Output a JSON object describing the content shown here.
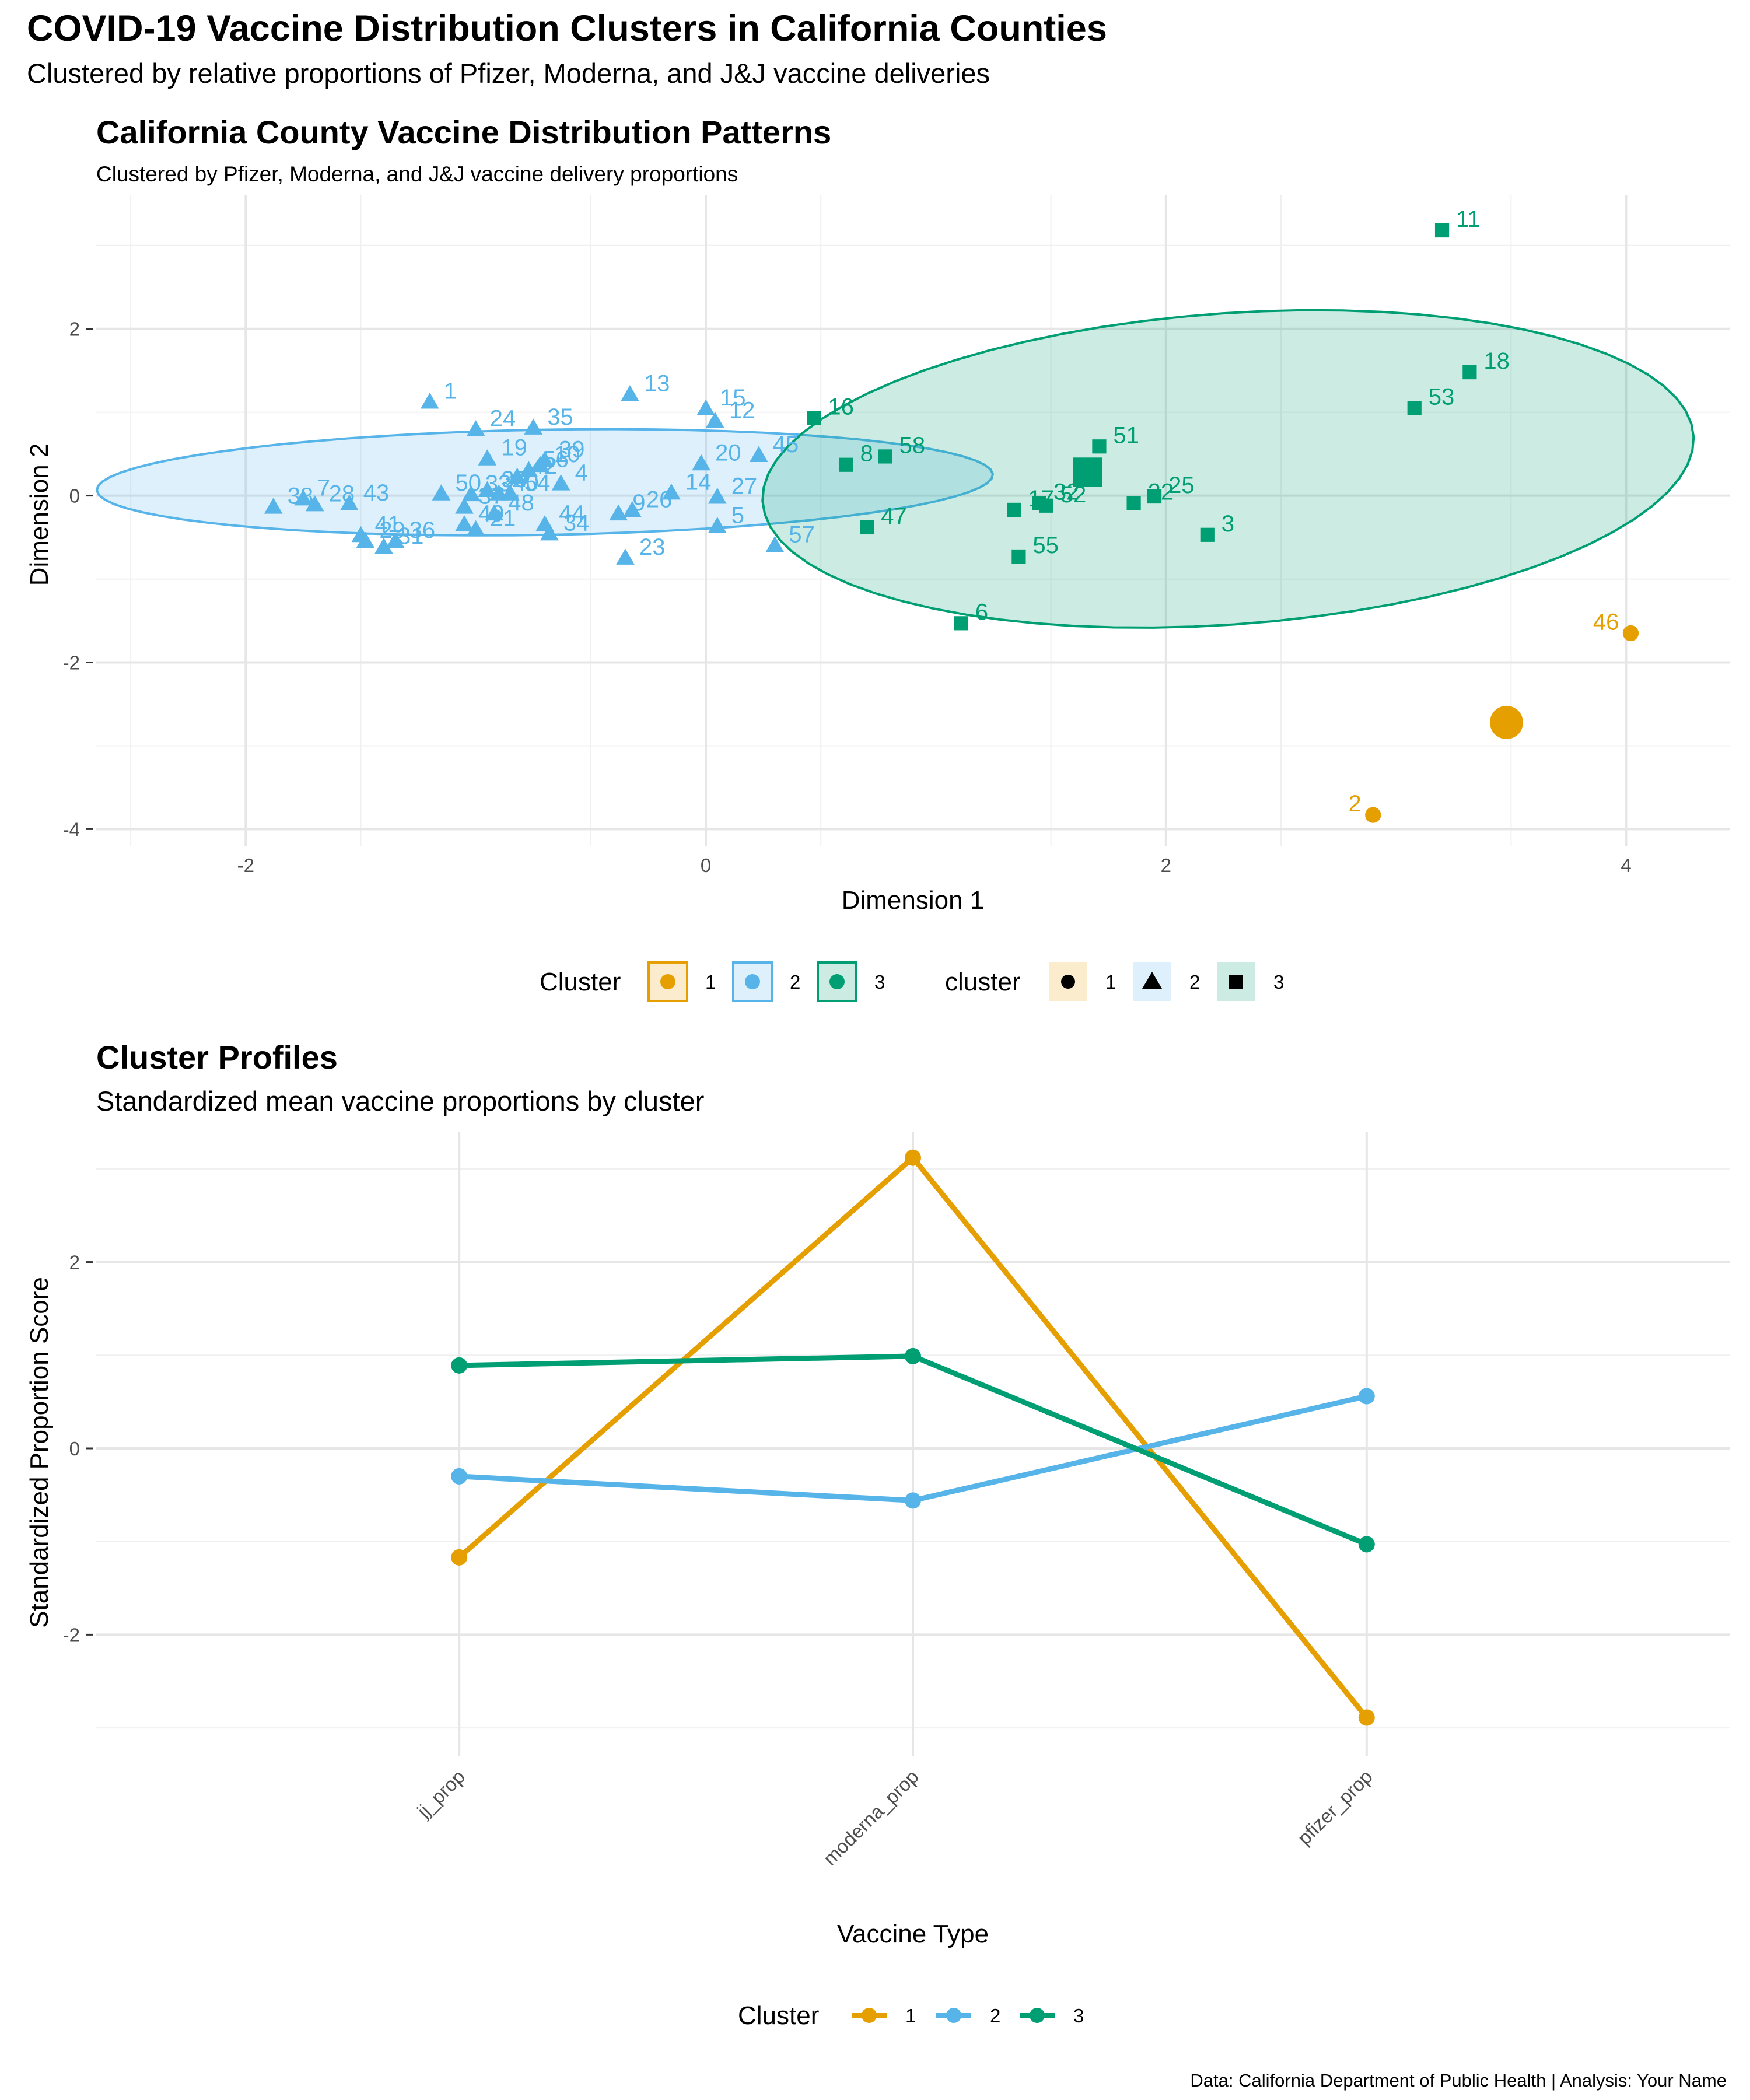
{
  "figure": {
    "title": "COVID-19 Vaccine Distribution Clusters in California Counties",
    "subtitle": "Clustered by relative proportions of Pfizer, Moderna, and J&J vaccine deliveries",
    "caption": "Data: California Department of Public Health | Analysis: Your Name"
  },
  "colors": {
    "1": "#E69F00",
    "2": "#56B4E9",
    "3": "#009E73"
  },
  "chart_data": [
    {
      "type": "scatter",
      "title": "California County Vaccine Distribution Patterns",
      "subtitle": "Clustered by Pfizer, Moderna, and J&J vaccine delivery proportions",
      "xlabel": "Dimension 1",
      "ylabel": "Dimension 2",
      "xlim": [
        -2.65,
        4.45
      ],
      "ylim": [
        -4.2,
        3.6
      ],
      "xticks": [
        -2,
        0,
        2,
        4
      ],
      "yticks": [
        -4,
        -2,
        0,
        2
      ],
      "grid": true,
      "legend": {
        "placement": "bottom",
        "fill_title": "Cluster",
        "shape_title": "cluster",
        "entries": [
          "1",
          "2",
          "3"
        ],
        "shapes": [
          "circle",
          "triangle",
          "square"
        ]
      },
      "points": [
        {
          "label": "2",
          "x": 2.9,
          "y": -3.83,
          "cluster": 1
        },
        {
          "label": "46",
          "x": 4.02,
          "y": -1.65,
          "cluster": 1
        },
        {
          "label": "1",
          "x": -1.2,
          "y": 1.12,
          "cluster": 2
        },
        {
          "label": "24",
          "x": -1.0,
          "y": 0.79,
          "cluster": 2
        },
        {
          "label": "13",
          "x": -0.33,
          "y": 1.21,
          "cluster": 2
        },
        {
          "label": "35",
          "x": -0.75,
          "y": 0.81,
          "cluster": 2
        },
        {
          "label": "39",
          "x": -0.7,
          "y": 0.42,
          "cluster": 2
        },
        {
          "label": "15",
          "x": 0.0,
          "y": 1.04,
          "cluster": 2
        },
        {
          "label": "19",
          "x": -0.95,
          "y": 0.44,
          "cluster": 2
        },
        {
          "label": "42",
          "x": -0.82,
          "y": 0.22,
          "cluster": 2
        },
        {
          "label": "56",
          "x": -0.77,
          "y": 0.3,
          "cluster": 2
        },
        {
          "label": "10",
          "x": -0.72,
          "y": 0.36,
          "cluster": 2
        },
        {
          "label": "4",
          "x": -0.63,
          "y": 0.14,
          "cluster": 2
        },
        {
          "label": "12",
          "x": 0.04,
          "y": 0.89,
          "cluster": 2
        },
        {
          "label": "20",
          "x": -0.02,
          "y": 0.38,
          "cluster": 2
        },
        {
          "label": "45",
          "x": 0.23,
          "y": 0.48,
          "cluster": 2
        },
        {
          "label": "38",
          "x": -1.88,
          "y": -0.14,
          "cluster": 2
        },
        {
          "label": "7",
          "x": -1.75,
          "y": -0.04,
          "cluster": 2
        },
        {
          "label": "28",
          "x": -1.7,
          "y": -0.11,
          "cluster": 2
        },
        {
          "label": "43",
          "x": -1.55,
          "y": -0.1,
          "cluster": 2
        },
        {
          "label": "50",
          "x": -1.15,
          "y": 0.02,
          "cluster": 2
        },
        {
          "label": "33",
          "x": -1.02,
          "y": 0.01,
          "cluster": 2
        },
        {
          "label": "30",
          "x": -0.95,
          "y": 0.06,
          "cluster": 2
        },
        {
          "label": "40",
          "x": -0.9,
          "y": 0.02,
          "cluster": 2
        },
        {
          "label": "54",
          "x": -0.85,
          "y": 0.02,
          "cluster": 2
        },
        {
          "label": "37",
          "x": -1.05,
          "y": -0.14,
          "cluster": 2
        },
        {
          "label": "48",
          "x": -0.92,
          "y": -0.22,
          "cluster": 2
        },
        {
          "label": "9",
          "x": -0.38,
          "y": -0.22,
          "cluster": 2
        },
        {
          "label": "27",
          "x": 0.05,
          "y": -0.02,
          "cluster": 2
        },
        {
          "label": "41",
          "x": -1.5,
          "y": -0.48,
          "cluster": 2
        },
        {
          "label": "29",
          "x": -1.48,
          "y": -0.55,
          "cluster": 2
        },
        {
          "label": "31",
          "x": -1.4,
          "y": -0.62,
          "cluster": 2
        },
        {
          "label": "36",
          "x": -1.35,
          "y": -0.55,
          "cluster": 2
        },
        {
          "label": "49",
          "x": -1.05,
          "y": -0.35,
          "cluster": 2
        },
        {
          "label": "21",
          "x": -1.0,
          "y": -0.41,
          "cluster": 2
        },
        {
          "label": "44",
          "x": -0.7,
          "y": -0.35,
          "cluster": 2
        },
        {
          "label": "34",
          "x": -0.68,
          "y": -0.46,
          "cluster": 2
        },
        {
          "label": "26",
          "x": -0.32,
          "y": -0.18,
          "cluster": 2
        },
        {
          "label": "23",
          "x": -0.35,
          "y": -0.75,
          "cluster": 2
        },
        {
          "label": "5",
          "x": 0.05,
          "y": -0.37,
          "cluster": 2
        },
        {
          "label": "14",
          "x": -0.15,
          "y": 0.03,
          "cluster": 2
        },
        {
          "label": "57",
          "x": 0.3,
          "y": -0.6,
          "cluster": 2
        },
        {
          "label": "11",
          "x": 3.2,
          "y": 3.18,
          "cluster": 3
        },
        {
          "label": "18",
          "x": 3.32,
          "y": 1.48,
          "cluster": 3
        },
        {
          "label": "53",
          "x": 3.08,
          "y": 1.05,
          "cluster": 3
        },
        {
          "label": "16",
          "x": 0.47,
          "y": 0.93,
          "cluster": 3
        },
        {
          "label": "58",
          "x": 0.78,
          "y": 0.47,
          "cluster": 3
        },
        {
          "label": "8",
          "x": 0.61,
          "y": 0.37,
          "cluster": 3
        },
        {
          "label": "51",
          "x": 1.71,
          "y": 0.59,
          "cluster": 3
        },
        {
          "label": "32",
          "x": 1.45,
          "y": -0.09,
          "cluster": 3
        },
        {
          "label": "25",
          "x": 1.95,
          "y": -0.01,
          "cluster": 3
        },
        {
          "label": "22",
          "x": 1.86,
          "y": -0.09,
          "cluster": 3
        },
        {
          "label": "17",
          "x": 1.34,
          "y": -0.17,
          "cluster": 3
        },
        {
          "label": "52",
          "x": 1.48,
          "y": -0.12,
          "cluster": 3
        },
        {
          "label": "3",
          "x": 2.18,
          "y": -0.47,
          "cluster": 3
        },
        {
          "label": "47",
          "x": 0.7,
          "y": -0.38,
          "cluster": 3
        },
        {
          "label": "55",
          "x": 1.36,
          "y": -0.73,
          "cluster": 3
        },
        {
          "label": "6",
          "x": 1.11,
          "y": -1.53,
          "cluster": 3
        }
      ],
      "centroids": [
        {
          "cluster": 1,
          "x": 3.48,
          "y": -2.72
        },
        {
          "cluster": 3,
          "x": 1.66,
          "y": 0.28
        }
      ],
      "ellipses": [
        {
          "cluster": 2,
          "cx": -0.7,
          "cy": 0.16,
          "rx": 1.95,
          "ry": 0.63,
          "angle_deg": 3
        },
        {
          "cluster": 3,
          "cx": 2.27,
          "cy": 0.32,
          "rx": 2.15,
          "ry": 1.76,
          "angle_deg": 36
        }
      ]
    },
    {
      "type": "line",
      "title": "Cluster Profiles",
      "subtitle": "Standardized mean vaccine proportions by cluster",
      "xlabel": "Vaccine Type",
      "ylabel": "Standardized Proportion Score",
      "categories": [
        "jj_prop",
        "moderna_prop",
        "pfizer_prop"
      ],
      "ylim": [
        -3.3,
        3.4
      ],
      "yticks": [
        -2,
        0,
        2
      ],
      "grid": true,
      "legend": {
        "placement": "bottom",
        "title": "Cluster"
      },
      "series": [
        {
          "name": "1",
          "values": [
            -1.17,
            3.12,
            -2.89
          ]
        },
        {
          "name": "2",
          "values": [
            -0.3,
            -0.56,
            0.56
          ]
        },
        {
          "name": "3",
          "values": [
            0.89,
            0.99,
            -1.03
          ]
        }
      ]
    }
  ]
}
